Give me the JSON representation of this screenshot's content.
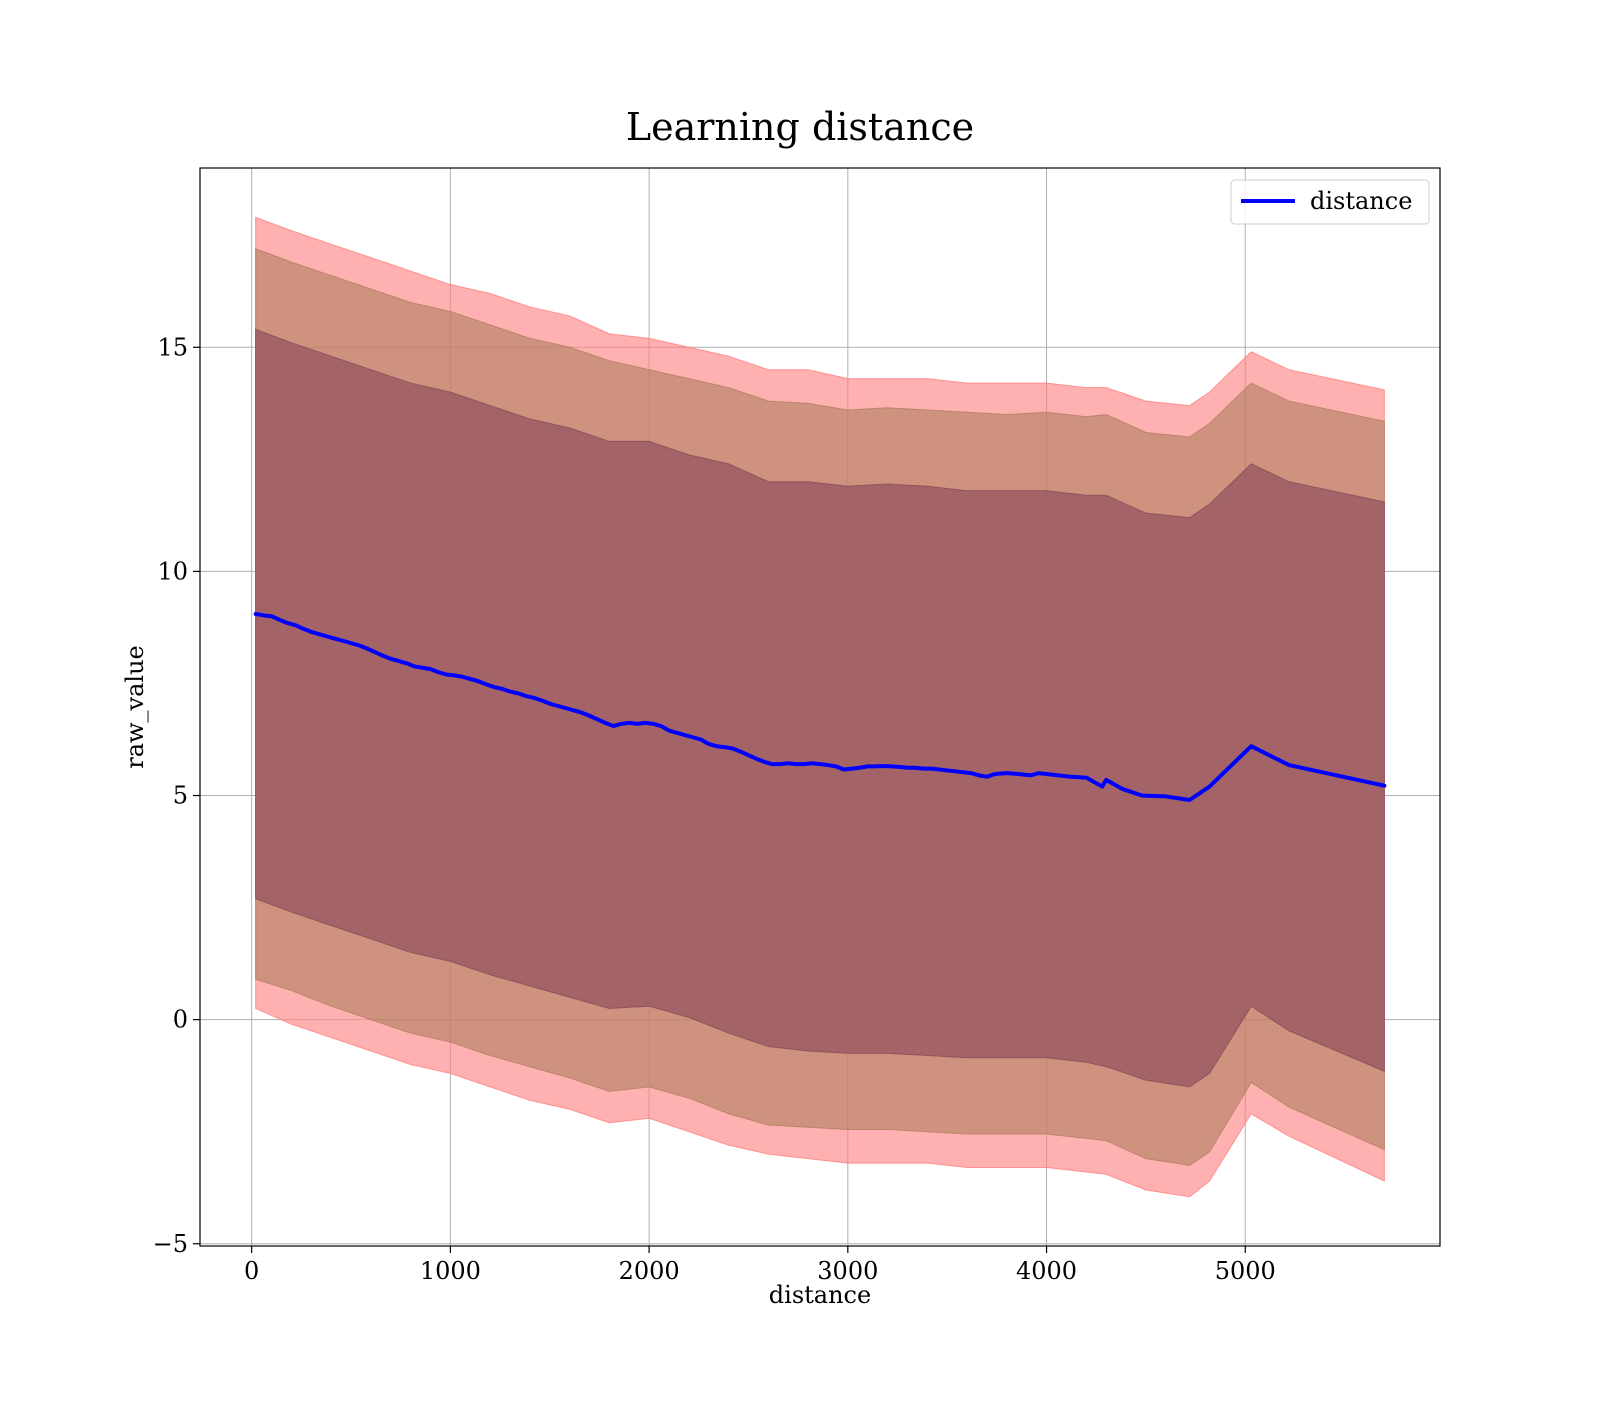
{
  "chart_data": {
    "type": "line",
    "title": "Learning distance",
    "xlabel": "distance",
    "ylabel": "raw_value",
    "xlim": [
      -260,
      5980
    ],
    "ylim": [
      -5.05,
      19.0
    ],
    "x_ticks": [
      0,
      1000,
      2000,
      3000,
      4000,
      5000
    ],
    "x_tick_labels": [
      "0",
      "1000",
      "2000",
      "3000",
      "4000",
      "5000"
    ],
    "y_ticks": [
      -5,
      0,
      5,
      10,
      15
    ],
    "y_tick_labels": [
      "−5",
      "0",
      "5",
      "10",
      "15"
    ],
    "grid": true,
    "legend": {
      "position": "top-right",
      "entries": [
        "distance"
      ]
    },
    "series": [
      {
        "name": "distance",
        "color": "#0000ff",
        "x": [
          20,
          60,
          100,
          140,
          180,
          220,
          260,
          300,
          340,
          380,
          420,
          460,
          500,
          540,
          580,
          620,
          660,
          700,
          740,
          780,
          820,
          860,
          900,
          940,
          980,
          1020,
          1060,
          1100,
          1140,
          1180,
          1220,
          1260,
          1300,
          1340,
          1380,
          1420,
          1460,
          1500,
          1540,
          1580,
          1620,
          1660,
          1700,
          1740,
          1780,
          1820,
          1860,
          1900,
          1940,
          1980,
          2020,
          2060,
          2100,
          2140,
          2180,
          2220,
          2260,
          2300,
          2340,
          2380,
          2420,
          2460,
          2500,
          2540,
          2580,
          2620,
          2660,
          2700,
          2740,
          2780,
          2820,
          2860,
          2900,
          2940,
          2980,
          3020,
          3060,
          3100,
          3140,
          3180,
          3220,
          3260,
          3300,
          3340,
          3380,
          3420,
          3460,
          3500,
          3540,
          3580,
          3620,
          3660,
          3700,
          3740,
          3800,
          3860,
          3920,
          3960,
          4000,
          4060,
          4120,
          4200,
          4280,
          4300,
          4380,
          4480,
          4600,
          4720,
          4820,
          5030,
          5220,
          5700
        ],
        "values": [
          9.05,
          9.02,
          9.0,
          8.92,
          8.85,
          8.8,
          8.72,
          8.65,
          8.6,
          8.55,
          8.5,
          8.45,
          8.4,
          8.35,
          8.28,
          8.2,
          8.12,
          8.05,
          8.0,
          7.95,
          7.88,
          7.85,
          7.82,
          7.75,
          7.7,
          7.68,
          7.65,
          7.6,
          7.55,
          7.48,
          7.42,
          7.38,
          7.32,
          7.28,
          7.22,
          7.18,
          7.12,
          7.05,
          7.0,
          6.95,
          6.9,
          6.85,
          6.78,
          6.7,
          6.62,
          6.55,
          6.6,
          6.62,
          6.6,
          6.62,
          6.6,
          6.55,
          6.45,
          6.4,
          6.35,
          6.3,
          6.25,
          6.15,
          6.1,
          6.08,
          6.05,
          5.98,
          5.9,
          5.82,
          5.75,
          5.7,
          5.7,
          5.72,
          5.7,
          5.7,
          5.72,
          5.7,
          5.68,
          5.65,
          5.58,
          5.6,
          5.62,
          5.65,
          5.65,
          5.66,
          5.65,
          5.64,
          5.62,
          5.62,
          5.6,
          5.6,
          5.58,
          5.56,
          5.54,
          5.52,
          5.5,
          5.45,
          5.42,
          5.48,
          5.5,
          5.48,
          5.45,
          5.5,
          5.48,
          5.45,
          5.42,
          5.4,
          5.2,
          5.35,
          5.15,
          5.0,
          4.98,
          4.9,
          5.2,
          6.1,
          5.68,
          5.22
        ]
      }
    ],
    "bands": [
      {
        "color": "#ff7f7f",
        "x": [
          20,
          200,
          400,
          600,
          800,
          1000,
          1200,
          1400,
          1600,
          1800,
          2000,
          2200,
          2400,
          2600,
          2800,
          3000,
          3200,
          3400,
          3600,
          3800,
          4000,
          4200,
          4300,
          4500,
          4720,
          4820,
          5030,
          5220,
          5700
        ],
        "upper": [
          17.9,
          17.6,
          17.3,
          17.0,
          16.7,
          16.4,
          16.2,
          15.9,
          15.7,
          15.3,
          15.2,
          15.0,
          14.8,
          14.5,
          14.5,
          14.3,
          14.3,
          14.3,
          14.2,
          14.2,
          14.2,
          14.1,
          14.1,
          13.8,
          13.7,
          14.0,
          14.9,
          14.5,
          14.05
        ],
        "lower": [
          0.25,
          -0.1,
          -0.4,
          -0.7,
          -1.0,
          -1.2,
          -1.5,
          -1.8,
          -2.0,
          -2.3,
          -2.2,
          -2.5,
          -2.8,
          -3.0,
          -3.1,
          -3.2,
          -3.2,
          -3.2,
          -3.3,
          -3.3,
          -3.3,
          -3.4,
          -3.45,
          -3.8,
          -3.95,
          -3.6,
          -2.1,
          -2.6,
          -3.6
        ]
      },
      {
        "color": "#b08060",
        "x": [
          20,
          200,
          400,
          600,
          800,
          1000,
          1200,
          1400,
          1600,
          1800,
          2000,
          2200,
          2400,
          2600,
          2800,
          3000,
          3200,
          3400,
          3600,
          3800,
          4000,
          4200,
          4300,
          4500,
          4720,
          4820,
          5030,
          5220,
          5700
        ],
        "upper": [
          17.2,
          16.9,
          16.6,
          16.3,
          16.0,
          15.8,
          15.5,
          15.2,
          15.0,
          14.7,
          14.5,
          14.3,
          14.1,
          13.8,
          13.75,
          13.6,
          13.65,
          13.6,
          13.55,
          13.5,
          13.55,
          13.45,
          13.5,
          13.1,
          13.0,
          13.3,
          14.2,
          13.8,
          13.35
        ],
        "lower": [
          0.9,
          0.65,
          0.3,
          0.0,
          -0.3,
          -0.5,
          -0.8,
          -1.05,
          -1.3,
          -1.6,
          -1.5,
          -1.75,
          -2.1,
          -2.35,
          -2.4,
          -2.45,
          -2.45,
          -2.5,
          -2.55,
          -2.55,
          -2.55,
          -2.65,
          -2.7,
          -3.1,
          -3.25,
          -2.95,
          -1.4,
          -1.95,
          -2.9
        ]
      },
      {
        "color": "#8b4858",
        "x": [
          20,
          200,
          400,
          600,
          800,
          1000,
          1200,
          1400,
          1600,
          1800,
          2000,
          2200,
          2400,
          2600,
          2800,
          3000,
          3200,
          3400,
          3600,
          3800,
          4000,
          4200,
          4300,
          4500,
          4720,
          4820,
          5030,
          5220,
          5700
        ],
        "upper": [
          15.4,
          15.1,
          14.8,
          14.5,
          14.2,
          14.0,
          13.7,
          13.4,
          13.2,
          12.9,
          12.9,
          12.6,
          12.4,
          12.0,
          12.0,
          11.9,
          11.95,
          11.9,
          11.8,
          11.8,
          11.8,
          11.7,
          11.7,
          11.3,
          11.2,
          11.5,
          12.4,
          12.0,
          11.55
        ],
        "lower": [
          2.7,
          2.4,
          2.1,
          1.8,
          1.5,
          1.3,
          1.0,
          0.75,
          0.5,
          0.25,
          0.3,
          0.05,
          -0.3,
          -0.6,
          -0.7,
          -0.75,
          -0.75,
          -0.8,
          -0.85,
          -0.85,
          -0.85,
          -0.95,
          -1.05,
          -1.35,
          -1.5,
          -1.2,
          0.3,
          -0.25,
          -1.15
        ]
      }
    ]
  }
}
